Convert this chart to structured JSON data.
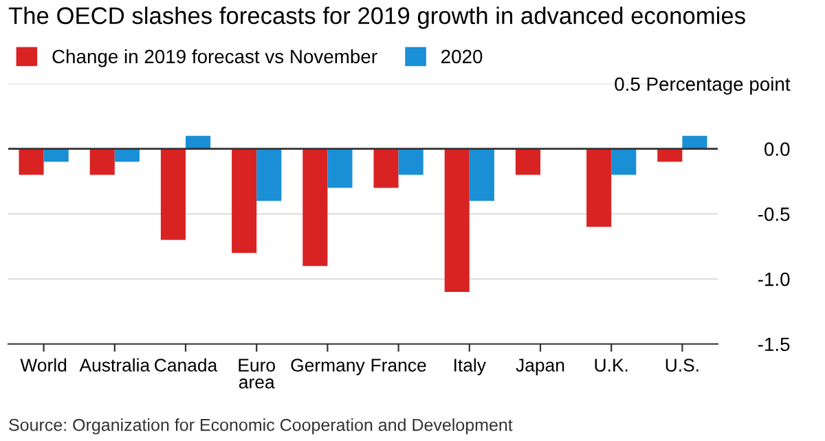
{
  "chart_data": {
    "type": "bar",
    "title": "The OECD slashes forecasts for 2019 growth in advanced economies",
    "categories": [
      "World",
      "Australia",
      "Canada",
      "Euro\narea",
      "Germany",
      "France",
      "Italy",
      "Japan",
      "U.K.",
      "U.S."
    ],
    "series": [
      {
        "name": "Change in 2019 forecast vs November",
        "color": "#d92323",
        "values": [
          -0.2,
          -0.2,
          -0.7,
          -0.8,
          -0.9,
          -0.3,
          -1.1,
          -0.2,
          -0.6,
          -0.1
        ]
      },
      {
        "name": "2020",
        "color": "#1a8fd6",
        "values": [
          -0.1,
          -0.1,
          0.1,
          -0.4,
          -0.3,
          -0.2,
          -0.4,
          0.0,
          -0.2,
          0.1
        ]
      }
    ],
    "ylim": [
      -1.5,
      0.5
    ],
    "yticks": [
      {
        "value": 0.5,
        "label": "0.5 Percentage point"
      },
      {
        "value": 0.0,
        "label": "0.0"
      },
      {
        "value": -0.5,
        "label": "-0.5"
      },
      {
        "value": -1.0,
        "label": "-1.0"
      },
      {
        "value": -1.5,
        "label": "-1.5"
      }
    ],
    "ref_lines": [
      {
        "axis": "y",
        "value": 0,
        "color": "#333333"
      }
    ],
    "grid": "y",
    "legend": "top left",
    "annotations": [
      "Source: Organization for Economic Cooperation and Development"
    ]
  }
}
